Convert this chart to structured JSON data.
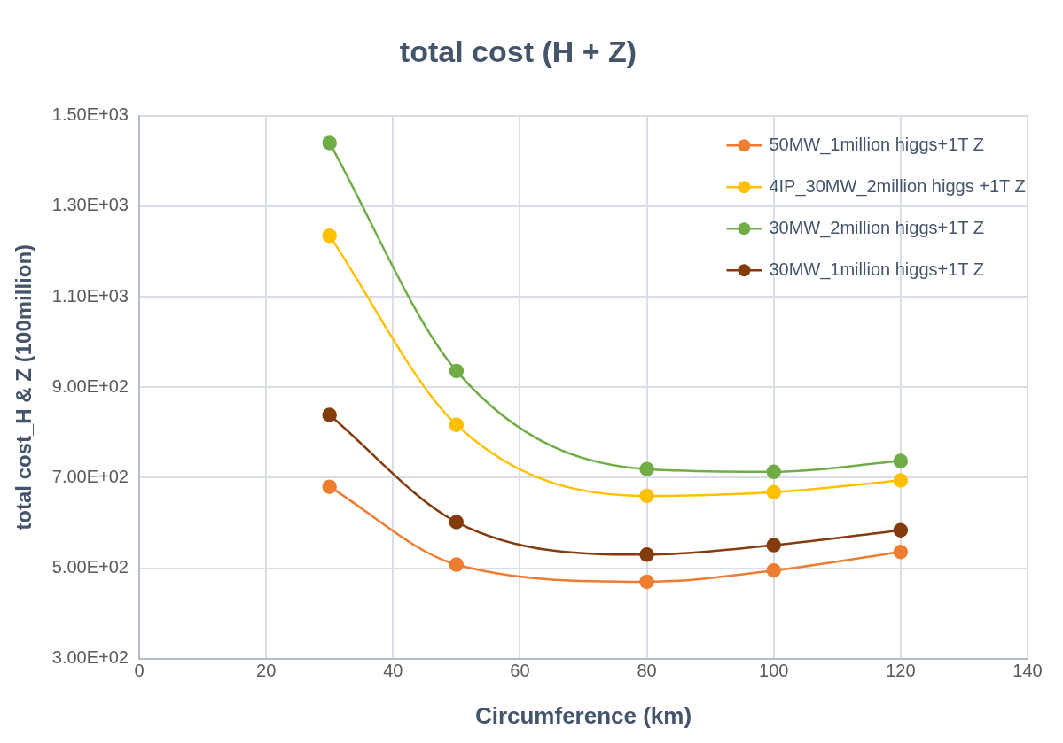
{
  "chart_data": {
    "type": "line",
    "title": "total cost (H + Z)",
    "xlabel": "Circumference (km)",
    "ylabel": "total cost_H & Z (100million)",
    "x": [
      30,
      50,
      80,
      100,
      120
    ],
    "series": [
      {
        "name": "50MW_1million higgs+1T Z",
        "color": "#ed7d31",
        "values": [
          680,
          508,
          470,
          495,
          536
        ]
      },
      {
        "name": "4IP_30MW_2million higgs +1T Z",
        "color": "#ffc000",
        "values": [
          1235,
          817,
          660,
          668,
          694
        ]
      },
      {
        "name": "30MW_2million higgs+1T Z",
        "color": "#70ad47",
        "values": [
          1440,
          936,
          719,
          713,
          737
        ]
      },
      {
        "name": "30MW_1million higgs+1T Z",
        "color": "#843c0c",
        "values": [
          839,
          602,
          530,
          551,
          584
        ]
      }
    ],
    "xlim": [
      0,
      140
    ],
    "xticks": [
      0,
      20,
      40,
      60,
      80,
      100,
      120,
      140
    ],
    "ylim": [
      300,
      1500
    ],
    "yticks": [
      {
        "value": 300,
        "label": "3.00E+02"
      },
      {
        "value": 500,
        "label": "5.00E+02"
      },
      {
        "value": 700,
        "label": "7.00E+02"
      },
      {
        "value": 900,
        "label": "9.00E+02"
      },
      {
        "value": 1100,
        "label": "1.10E+03"
      },
      {
        "value": 1300,
        "label": "1.30E+03"
      },
      {
        "value": 1500,
        "label": "1.50E+03"
      }
    ],
    "grid": true,
    "legend": "top right",
    "marker": "circle",
    "line_style": "solid"
  }
}
